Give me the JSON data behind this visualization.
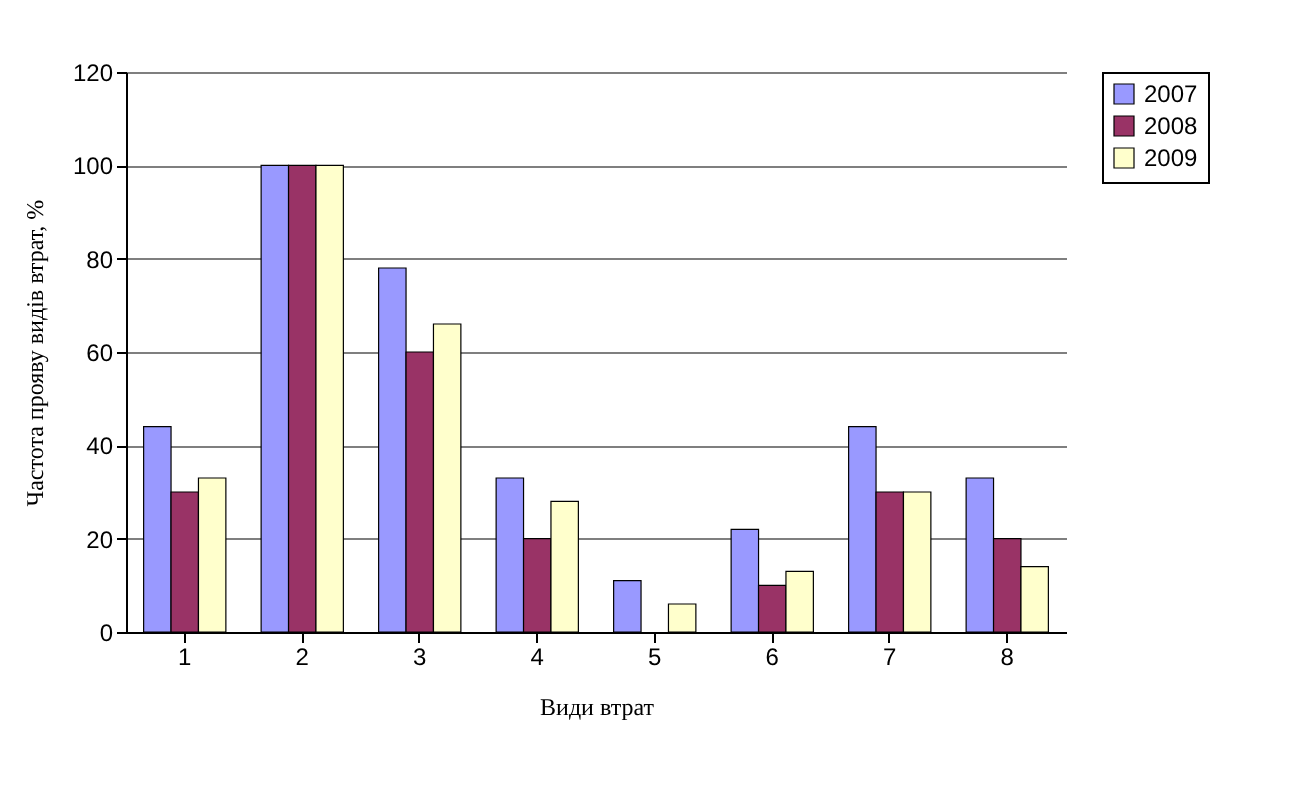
{
  "chart_data": {
    "type": "bar",
    "xlabel": "Види втрат",
    "ylabel": "Частота прояву видів втрат, %",
    "categories": [
      "1",
      "2",
      "3",
      "4",
      "5",
      "6",
      "7",
      "8"
    ],
    "series": [
      {
        "name": "2007",
        "color": "#9999ff",
        "values": [
          44,
          100,
          78,
          33,
          11,
          22,
          44,
          33
        ]
      },
      {
        "name": "2008",
        "color": "#993366",
        "values": [
          30,
          100,
          60,
          20,
          0,
          10,
          30,
          20
        ]
      },
      {
        "name": "2009",
        "color": "#ffffcc",
        "values": [
          33,
          100,
          66,
          28,
          6,
          13,
          30,
          14
        ]
      }
    ],
    "ylim": [
      0,
      120
    ],
    "yticks": [
      0,
      20,
      40,
      60,
      80,
      100,
      120
    ],
    "grid": "y",
    "legend": "right"
  }
}
